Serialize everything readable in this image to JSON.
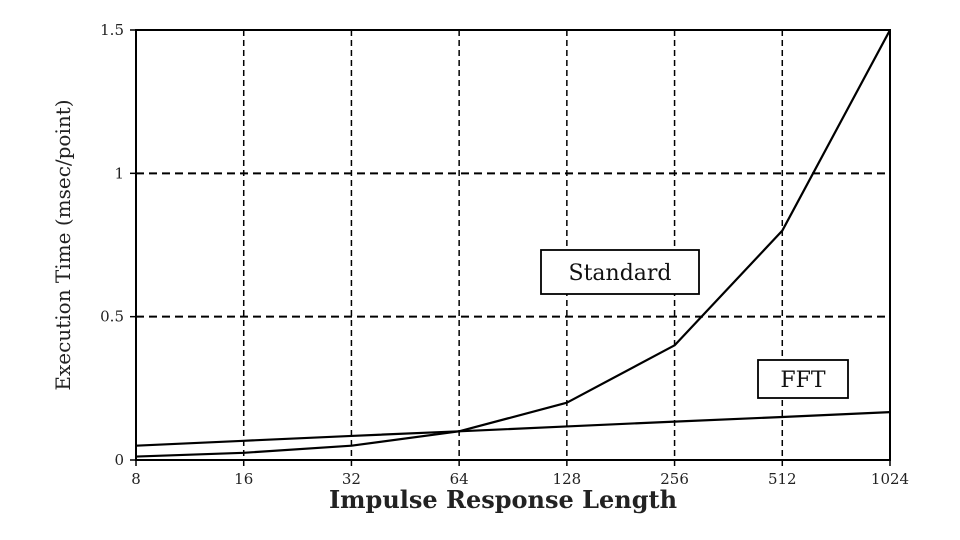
{
  "chart_data": {
    "type": "line",
    "xlabel": "Impulse Response Length",
    "ylabel": "Execution Time (msec/point)",
    "x_scale": "log2",
    "x_ticks": [
      "8",
      "16",
      "32",
      "64",
      "128",
      "256",
      "512",
      "1024"
    ],
    "y_ticks": [
      "0",
      "0.5",
      "1",
      "1.5"
    ],
    "xlim": [
      8,
      1024
    ],
    "ylim": [
      0,
      1.5
    ],
    "grid": true,
    "grid_style": "dashed",
    "series": [
      {
        "name": "Standard",
        "x": [
          8,
          16,
          32,
          64,
          128,
          256,
          512,
          1024
        ],
        "y": [
          0.012,
          0.025,
          0.05,
          0.1,
          0.2,
          0.4,
          0.8,
          1.5
        ]
      },
      {
        "name": "FFT",
        "x": [
          8,
          16,
          32,
          64,
          128,
          256,
          512,
          1024
        ],
        "y": [
          0.05,
          0.067,
          0.084,
          0.1,
          0.117,
          0.134,
          0.15,
          0.167
        ]
      }
    ]
  }
}
